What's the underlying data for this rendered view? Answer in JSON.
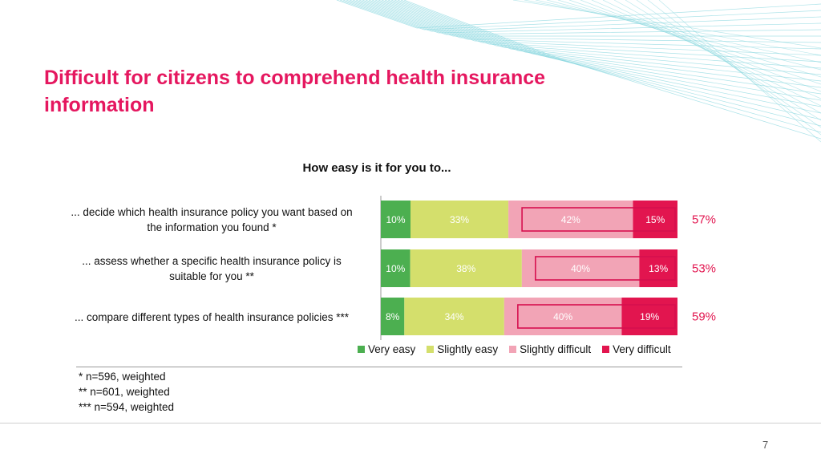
{
  "title": "Difficult for citizens to comprehend health insurance information",
  "colors": {
    "accent": "#e5175f",
    "very_easy": "#4caf50",
    "slightly_easy": "#d4df6c",
    "slightly_difficult": "#f2a4b6",
    "very_difficult": "#e2154f",
    "highlight_box": "#d6104f"
  },
  "chart_data": {
    "type": "bar",
    "orientation": "horizontal",
    "stacked": true,
    "normalized": true,
    "title": "How easy is it for you to...",
    "categories": [
      "... decide which health insurance policy you want based on the information you found *",
      "... assess whether a specific health insurance policy is suitable for you **",
      "... compare different types of health insurance policies ***"
    ],
    "series": [
      {
        "name": "Very easy",
        "values": [
          10,
          10,
          8
        ],
        "labels": [
          "10%",
          "10%",
          "8%"
        ]
      },
      {
        "name": "Slightly easy",
        "values": [
          33,
          38,
          34
        ],
        "labels": [
          "33%",
          "38%",
          "34%"
        ]
      },
      {
        "name": "Slightly difficult",
        "values": [
          42,
          40,
          40
        ],
        "labels": [
          "42%",
          "40%",
          "40%"
        ]
      },
      {
        "name": "Very difficult",
        "values": [
          15,
          13,
          19
        ],
        "labels": [
          "15%",
          "13%",
          "19%"
        ]
      }
    ],
    "totals_difficult": [
      "57%",
      "53%",
      "59%"
    ],
    "legend_position": "bottom",
    "grid": false
  },
  "row_labels": [
    [
      "... decide which health insurance policy you want based on",
      "the information you found *"
    ],
    [
      "... assess whether a specific health insurance policy is",
      "suitable for you **"
    ],
    [
      "... compare different types of health insurance policies ***"
    ]
  ],
  "legend": [
    {
      "label": "Very easy",
      "color": "#4caf50"
    },
    {
      "label": "Slightly easy",
      "color": "#d4df6c"
    },
    {
      "label": "Slightly difficult",
      "color": "#f2a4b6"
    },
    {
      "label": "Very difficult",
      "color": "#e2154f"
    }
  ],
  "notes": [
    "* n=596, weighted",
    "** n=601, weighted",
    "*** n=594, weighted"
  ],
  "page_number": "7"
}
